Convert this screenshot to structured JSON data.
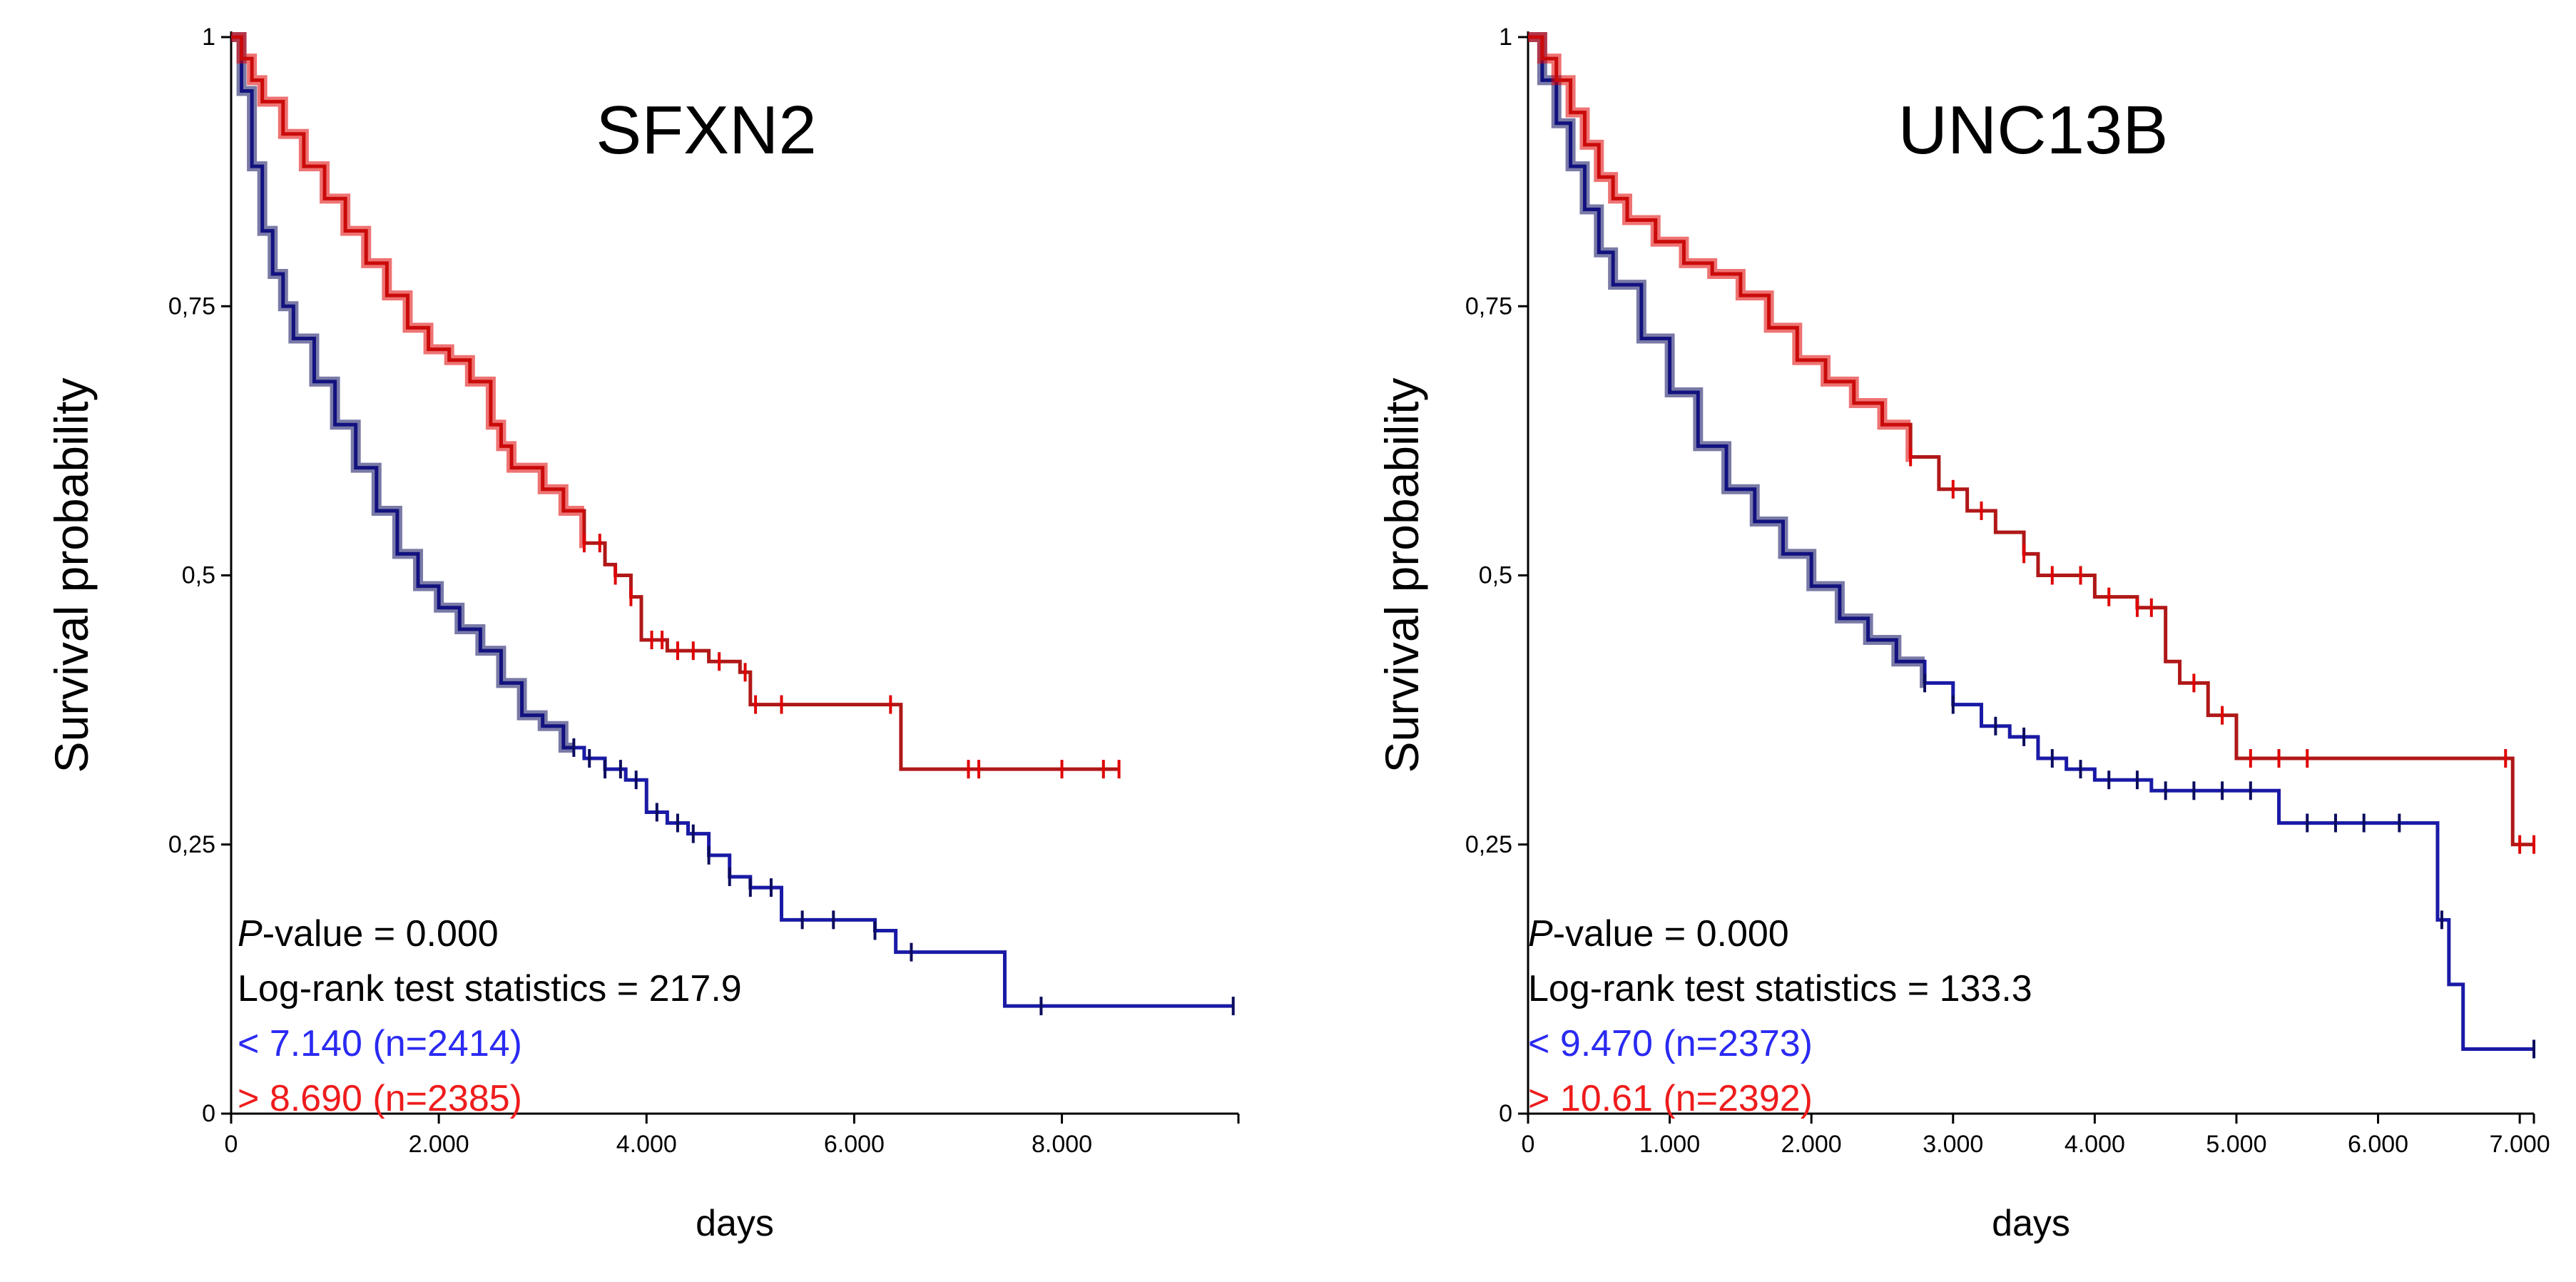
{
  "chart_data": [
    {
      "type": "line",
      "title": "SFXN2",
      "xlabel": "days",
      "ylabel": "Survival probability",
      "xlim": [
        0,
        9700
      ],
      "ylim": [
        0,
        1
      ],
      "x_ticks": [
        0,
        2000,
        4000,
        6000,
        8000
      ],
      "x_tick_labels": [
        "0",
        "2.000",
        "4.000",
        "6.000",
        "8.000"
      ],
      "y_ticks": [
        0,
        0.25,
        0.5,
        0.75,
        1
      ],
      "y_tick_labels": [
        "0",
        "0,25",
        "0,5",
        "0,75",
        "1"
      ],
      "stats": {
        "p_prefix": "P",
        "p_rest": "-value = 0.000",
        "logrank": "Log-rank test statistics = 217.9",
        "low_label": "< 7.140 (n=2414)",
        "high_label": "> 8.690 (n=2385)"
      },
      "series": [
        {
          "name": "< 7.140 (n=2414)",
          "color": "#1a1aa6",
          "censor_color": "#0c0c5e",
          "x": [
            0,
            100,
            200,
            300,
            400,
            500,
            600,
            800,
            1000,
            1200,
            1400,
            1600,
            1800,
            2000,
            2200,
            2400,
            2600,
            2800,
            3000,
            3200,
            3400,
            3600,
            3800,
            4000,
            4200,
            4400,
            4600,
            4800,
            5000,
            5300,
            5600,
            5900,
            6200,
            6400,
            6800,
            7300,
            7450,
            7800,
            8500,
            9650
          ],
          "y": [
            1.0,
            0.95,
            0.88,
            0.82,
            0.78,
            0.75,
            0.72,
            0.68,
            0.64,
            0.6,
            0.56,
            0.52,
            0.49,
            0.47,
            0.45,
            0.43,
            0.4,
            0.37,
            0.36,
            0.34,
            0.33,
            0.32,
            0.31,
            0.28,
            0.27,
            0.26,
            0.24,
            0.22,
            0.21,
            0.18,
            0.18,
            0.18,
            0.17,
            0.15,
            0.15,
            0.15,
            0.1,
            0.1,
            0.1,
            0.1
          ],
          "censor_x": [
            3300,
            3450,
            3600,
            3750,
            3900,
            4100,
            4300,
            4450,
            4600,
            4800,
            5000,
            5200,
            5500,
            5800,
            6200,
            6550,
            7800,
            9650
          ]
        },
        {
          "name": "> 8.690 (n=2385)",
          "color": "#b01818",
          "censor_color": "#e00000",
          "x": [
            0,
            100,
            200,
            300,
            500,
            700,
            900,
            1100,
            1300,
            1500,
            1700,
            1900,
            2100,
            2300,
            2500,
            2600,
            2700,
            2800,
            3000,
            3200,
            3400,
            3600,
            3700,
            3850,
            3950,
            4000,
            4200,
            4400,
            4600,
            4900,
            5000,
            5500,
            6000,
            6400,
            6450,
            7000,
            7500,
            8000,
            8550
          ],
          "y": [
            1.0,
            0.98,
            0.96,
            0.94,
            0.91,
            0.88,
            0.85,
            0.82,
            0.79,
            0.76,
            0.73,
            0.71,
            0.7,
            0.68,
            0.64,
            0.62,
            0.6,
            0.6,
            0.58,
            0.56,
            0.53,
            0.51,
            0.5,
            0.48,
            0.44,
            0.44,
            0.43,
            0.43,
            0.42,
            0.41,
            0.38,
            0.38,
            0.38,
            0.38,
            0.32,
            0.32,
            0.32,
            0.32,
            0.32
          ],
          "censor_x": [
            3400,
            3550,
            3700,
            3850,
            4050,
            4150,
            4300,
            4450,
            4700,
            4950,
            5050,
            5300,
            6350,
            7100,
            7200,
            8000,
            8400,
            8550
          ]
        }
      ]
    },
    {
      "type": "line",
      "title": "UNC13B",
      "xlabel": "days",
      "ylabel": "Survival probability",
      "xlim": [
        0,
        7100
      ],
      "ylim": [
        0,
        1
      ],
      "x_ticks": [
        0,
        1000,
        2000,
        3000,
        4000,
        5000,
        6000,
        7000
      ],
      "x_tick_labels": [
        "0",
        "1.000",
        "2.000",
        "3.000",
        "4.000",
        "5.000",
        "6.000",
        "7.000"
      ],
      "y_ticks": [
        0,
        0.25,
        0.5,
        0.75,
        1
      ],
      "y_tick_labels": [
        "0",
        "0,25",
        "0,5",
        "0,75",
        "1"
      ],
      "stats": {
        "p_prefix": "P",
        "p_rest": "-value = 0.000",
        "logrank": "Log-rank test statistics = 133.3",
        "low_label": "< 9.470 (n=2373)",
        "high_label": "> 10.61 (n=2392)"
      },
      "series": [
        {
          "name": "< 9.470 (n=2373)",
          "color": "#1a1aa6",
          "censor_color": "#0c0c5e",
          "x": [
            0,
            100,
            200,
            300,
            400,
            500,
            600,
            800,
            1000,
            1200,
            1400,
            1600,
            1800,
            2000,
            2200,
            2400,
            2600,
            2800,
            3000,
            3200,
            3400,
            3600,
            3800,
            4000,
            4200,
            4400,
            4600,
            5000,
            5300,
            5800,
            6400,
            6420,
            6500,
            6550,
            6600,
            7100
          ],
          "y": [
            1.0,
            0.96,
            0.92,
            0.88,
            0.84,
            0.8,
            0.77,
            0.72,
            0.67,
            0.62,
            0.58,
            0.55,
            0.52,
            0.49,
            0.46,
            0.44,
            0.42,
            0.4,
            0.38,
            0.36,
            0.35,
            0.33,
            0.32,
            0.31,
            0.31,
            0.3,
            0.3,
            0.3,
            0.27,
            0.27,
            0.27,
            0.18,
            0.12,
            0.12,
            0.06,
            0.06
          ],
          "censor_x": [
            2800,
            3000,
            3300,
            3500,
            3700,
            3900,
            4100,
            4300,
            4500,
            4700,
            4900,
            5100,
            5500,
            5700,
            5900,
            6150,
            6450,
            7100
          ]
        },
        {
          "name": "> 10.61 (n=2392)",
          "color": "#b01818",
          "censor_color": "#e00000",
          "x": [
            0,
            100,
            200,
            300,
            400,
            500,
            600,
            700,
            900,
            1100,
            1300,
            1500,
            1700,
            1900,
            2100,
            2300,
            2500,
            2700,
            2900,
            3100,
            3300,
            3500,
            3600,
            3800,
            4000,
            4300,
            4500,
            4600,
            4800,
            5000,
            5100,
            6000,
            6900,
            6950,
            7100
          ],
          "y": [
            1.0,
            0.98,
            0.96,
            0.93,
            0.9,
            0.87,
            0.85,
            0.83,
            0.81,
            0.79,
            0.78,
            0.76,
            0.73,
            0.7,
            0.68,
            0.66,
            0.64,
            0.61,
            0.58,
            0.56,
            0.54,
            0.52,
            0.5,
            0.5,
            0.48,
            0.47,
            0.42,
            0.4,
            0.37,
            0.33,
            0.33,
            0.33,
            0.33,
            0.25,
            0.25
          ],
          "censor_x": [
            2700,
            3000,
            3200,
            3500,
            3700,
            3900,
            4100,
            4300,
            4400,
            4700,
            4900,
            5100,
            5300,
            5500,
            6900,
            7000,
            7100
          ]
        }
      ]
    }
  ]
}
